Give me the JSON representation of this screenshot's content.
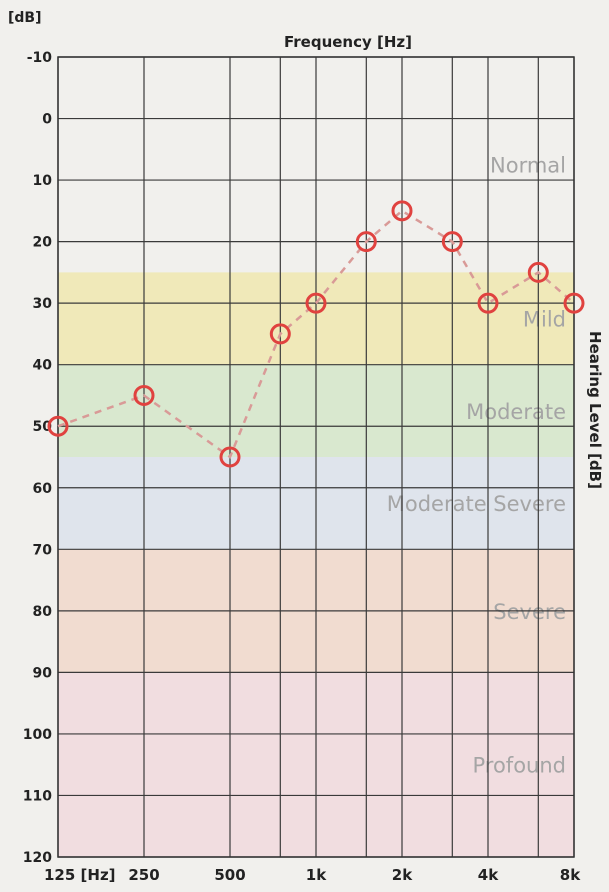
{
  "chart_data": {
    "type": "line",
    "top_label": "[dB]",
    "title": "Frequency [Hz]",
    "ylabel": "Hearing Level [dB]",
    "y_ticks": [
      "-10",
      "0",
      "10",
      "20",
      "30",
      "40",
      "50",
      "60",
      "70",
      "80",
      "90",
      "100",
      "110",
      "120"
    ],
    "ylim": [
      -10,
      120
    ],
    "x_tick_labels": [
      {
        "label": "125 [Hz]",
        "freq": 125
      },
      {
        "label": "250",
        "freq": 250
      },
      {
        "label": "500",
        "freq": 500
      },
      {
        "label": "1k",
        "freq": 1000
      },
      {
        "label": "2k",
        "freq": 2000
      },
      {
        "label": "4k",
        "freq": 4000
      },
      {
        "label": "8k",
        "freq": 8000
      }
    ],
    "x_grid_freqs": [
      125,
      250,
      500,
      750,
      1000,
      1500,
      2000,
      3000,
      4000,
      6000,
      8000
    ],
    "x_scale": "log",
    "xlim": [
      125,
      8000
    ],
    "grid": true,
    "bands": [
      {
        "name": "Normal",
        "from": -10,
        "to": 25,
        "color": "#f1f0ed"
      },
      {
        "name": "Mild",
        "from": 25,
        "to": 40,
        "color": "#f0e9b9"
      },
      {
        "name": "Moderate",
        "from": 40,
        "to": 55,
        "color": "#d9e8cf"
      },
      {
        "name": "Moderate Severe",
        "from": 55,
        "to": 70,
        "color": "#dfe4ec"
      },
      {
        "name": "Severe",
        "from": 70,
        "to": 90,
        "color": "#f1dcd0"
      },
      {
        "name": "Profound",
        "from": 90,
        "to": 120,
        "color": "#f1dde0"
      }
    ],
    "series": [
      {
        "marker": "circle",
        "color": "#e0423f",
        "line_color": "#d99a97",
        "x": [
          125,
          250,
          500,
          750,
          1000,
          1500,
          2000,
          3000,
          4000,
          6000,
          8000
        ],
        "y": [
          50,
          45,
          55,
          35,
          30,
          20,
          15,
          20,
          30,
          25,
          30
        ]
      }
    ]
  }
}
